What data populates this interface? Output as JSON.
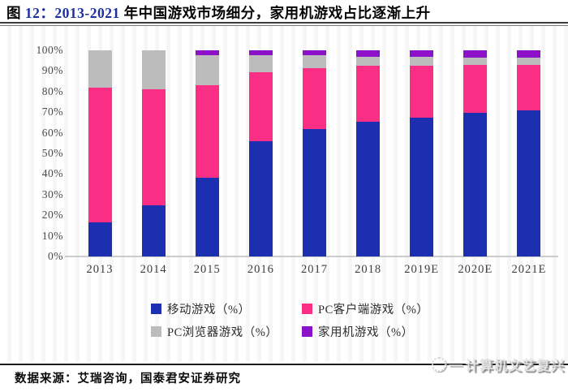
{
  "figure": {
    "title_part1": "图 ",
    "title_part2": "12：2013-2021 ",
    "title_part3": "年中国游戏市场细分，家用机游戏占比逐渐上升"
  },
  "chart_data": {
    "type": "bar",
    "stacked": true,
    "title": "2013-2021 年中国游戏市场细分",
    "categories": [
      "2013",
      "2014",
      "2015",
      "2016",
      "2017",
      "2018",
      "2019E",
      "2020E",
      "2021E"
    ],
    "series": [
      {
        "name": "移动游戏（%）",
        "color": "#1b2fb0",
        "values": [
          16.5,
          25,
          38,
          56,
          62,
          65.5,
          67.5,
          69.5,
          71
        ]
      },
      {
        "name": "PC客户端游戏（%）",
        "color": "#fa2e85",
        "values": [
          65.5,
          56,
          45,
          33.5,
          29.5,
          27,
          25,
          23.5,
          22
        ]
      },
      {
        "name": "PC浏览器游戏（%）",
        "color": "#bcbcbc",
        "values": [
          18,
          19,
          14.5,
          8,
          6,
          4.5,
          4.5,
          3.5,
          3.5
        ]
      },
      {
        "name": "家用机游戏（%）",
        "color": "#8d11c9",
        "values": [
          0,
          0,
          2.5,
          2.5,
          2.5,
          3,
          3,
          3.5,
          3.5
        ]
      }
    ],
    "ylim": [
      0,
      100
    ],
    "ytick_step": 10,
    "y_tick_labels": [
      "100%",
      "90%",
      "80%",
      "70%",
      "60%",
      "50%",
      "40%",
      "30%",
      "20%",
      "10%",
      "0%"
    ],
    "grid": false,
    "legend_position": "bottom"
  },
  "footer": {
    "source": "数据来源：艾瑞咨询，国泰君安证券研究"
  },
  "watermark": {
    "dash": "—",
    "text": "计算机文艺复兴"
  }
}
